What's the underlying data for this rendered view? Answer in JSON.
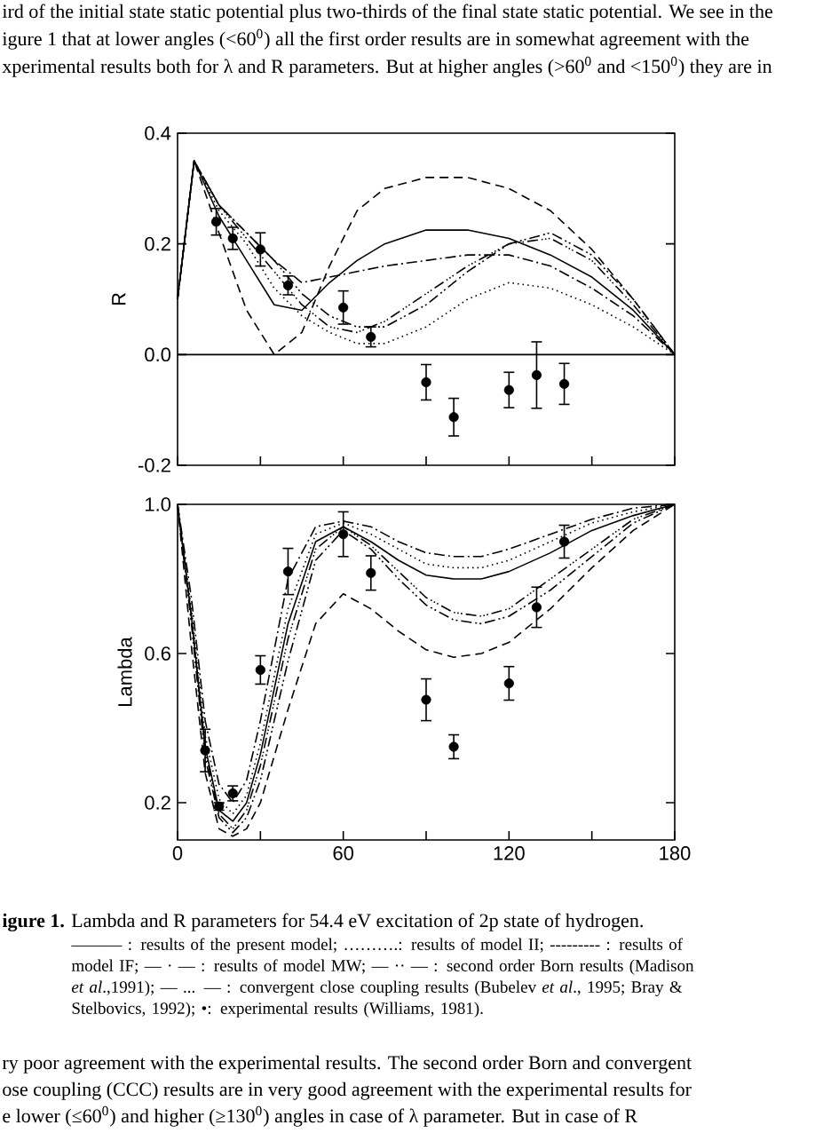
{
  "chart_data": [
    {
      "type": "line",
      "ylabel": "R",
      "xlim": [
        0,
        180
      ],
      "ylim": [
        -0.2,
        0.4
      ],
      "xticks": [
        0,
        {
          "value": 30,
          "label": null
        },
        60,
        {
          "value": 90,
          "label": null
        },
        120,
        {
          "value": 150,
          "label": null
        },
        180
      ],
      "yticks": [
        {
          "value": -0.2,
          "label": "-0.2"
        },
        {
          "value": 0.0,
          "label": "0.0"
        },
        {
          "value": 0.2,
          "label": "0.2"
        },
        {
          "value": 0.4,
          "label": "0.4"
        }
      ],
      "tick_labels": "y",
      "ref_lines": [
        {
          "axis": "y",
          "value": 0,
          "color": "#000000",
          "line_style": "solid"
        }
      ],
      "annotations": [
        "ird of the initial state static potential plus two-thirds of the final state static potential. We see in the",
        "igure 1 that at lower angles (<60$^{0}$) all the first order results are in somewhat agreement with the",
        "xperimental results both for λ and R parameters. But at higher angles (>60$^{0}$ and <150$^{0}$) they are in"
      ],
      "series": [
        {
          "color": "#000000",
          "line_style": "solid",
          "x": [
            0,
            6,
            15,
            25,
            35,
            45,
            55,
            65,
            75,
            90,
            105,
            120,
            135,
            150,
            165,
            180
          ],
          "values": [
            0.1,
            0.35,
            0.25,
            0.17,
            0.09,
            0.08,
            0.13,
            0.17,
            0.2,
            0.225,
            0.225,
            0.21,
            0.18,
            0.14,
            0.08,
            0
          ]
        },
        {
          "color": "#000000",
          "line_style": "dotted",
          "x": [
            0,
            6,
            15,
            25,
            35,
            45,
            55,
            65,
            75,
            90,
            105,
            120,
            135,
            150,
            165,
            180
          ],
          "values": [
            0.1,
            0.35,
            0.26,
            0.2,
            0.12,
            0.07,
            0.04,
            0.02,
            0.02,
            0.05,
            0.1,
            0.13,
            0.12,
            0.09,
            0.05,
            0
          ]
        },
        {
          "color": "#000000",
          "line_style": "dashed",
          "x": [
            0,
            6,
            15,
            25,
            35,
            45,
            55,
            65,
            75,
            90,
            105,
            120,
            135,
            150,
            165,
            180
          ],
          "values": [
            0.1,
            0.35,
            0.22,
            0.08,
            0.0,
            0.04,
            0.16,
            0.26,
            0.3,
            0.32,
            0.32,
            0.3,
            0.26,
            0.19,
            0.1,
            0
          ]
        },
        {
          "color": "#000000",
          "line_style": "dashdot",
          "x": [
            0,
            6,
            15,
            25,
            35,
            45,
            55,
            65,
            75,
            90,
            105,
            120,
            135,
            150,
            165,
            180
          ],
          "values": [
            0.1,
            0.35,
            0.27,
            0.22,
            0.17,
            0.13,
            0.14,
            0.15,
            0.16,
            0.17,
            0.18,
            0.18,
            0.16,
            0.12,
            0.07,
            0
          ]
        },
        {
          "color": "#000000",
          "line_style": "dashdotdot",
          "x": [
            0,
            6,
            15,
            25,
            35,
            45,
            55,
            65,
            75,
            90,
            105,
            120,
            135,
            150,
            165,
            180
          ],
          "values": [
            0.1,
            0.35,
            0.27,
            0.22,
            0.17,
            0.11,
            0.07,
            0.05,
            0.05,
            0.09,
            0.15,
            0.2,
            0.22,
            0.18,
            0.1,
            0
          ]
        },
        {
          "color": "#000000",
          "line_style": "dashdotdotdot",
          "x": [
            0,
            6,
            15,
            25,
            35,
            45,
            55,
            65,
            75,
            90,
            105,
            120,
            135,
            150,
            165,
            180
          ],
          "values": [
            0.1,
            0.35,
            0.27,
            0.21,
            0.15,
            0.09,
            0.05,
            0.04,
            0.06,
            0.11,
            0.16,
            0.2,
            0.21,
            0.17,
            0.09,
            0
          ]
        },
        {
          "type": "scatter",
          "marker": "circle",
          "color": "#000000",
          "x": [
            14,
            20,
            30,
            40,
            60,
            70,
            90,
            100,
            120,
            130,
            140
          ],
          "values": [
            0.24,
            0.21,
            0.19,
            0.125,
            0.085,
            0.032,
            -0.05,
            -0.113,
            -0.064,
            -0.037,
            -0.053
          ],
          "errors": [
            0.024,
            0.02,
            0.03,
            0.017,
            0.03,
            0.018,
            0.032,
            0.034,
            0.032,
            0.06,
            0.037
          ]
        }
      ]
    },
    {
      "type": "line",
      "ylabel": "Lambda",
      "xlim": [
        0,
        180
      ],
      "ylim": [
        0.1,
        1.0
      ],
      "xticks": [
        0,
        {
          "value": 30,
          "label": null
        },
        60,
        {
          "value": 90,
          "label": null
        },
        120,
        {
          "value": 150,
          "label": null
        },
        180
      ],
      "yticks": [
        {
          "value": 0.2,
          "label": "0.2"
        },
        {
          "value": 0.6,
          "label": "0.6"
        },
        {
          "value": 1.0,
          "label": "1.0"
        }
      ],
      "annotations": [
        "**igure 1.** Lambda and R parameters for 54.4 eV excitation of 2p state of hydrogen.",
        "——— : results of the present model; ……….: results of model II; --------- : results of model IF; — · — : results of model MW; — ·· — : second order Born results (Madison *et al*.,1991); — ... — : convergent close coupling results (Bubelev *et al*., 1995; Bray & Stelbovics, 1992);  •: experimental results (Williams, 1981).",
        "ry poor agreement with the experimental results. The second order Born and convergent",
        "ose coupling (CCC) results are in very good agreement with the experimental results for",
        "e lower (≤60$^{0}$) and higher (≥130$^{0}$) angles in case of λ parameter. But in case of R"
      ],
      "series": [
        {
          "color": "#000000",
          "line_style": "solid",
          "x": [
            0,
            5,
            10,
            15,
            20,
            25,
            30,
            40,
            50,
            60,
            70,
            80,
            90,
            100,
            110,
            120,
            135,
            150,
            165,
            180
          ],
          "values": [
            1.0,
            0.7,
            0.35,
            0.18,
            0.15,
            0.2,
            0.33,
            0.68,
            0.9,
            0.94,
            0.9,
            0.85,
            0.81,
            0.8,
            0.8,
            0.82,
            0.87,
            0.93,
            0.97,
            1.0
          ]
        },
        {
          "color": "#000000",
          "line_style": "dotted",
          "x": [
            0,
            5,
            10,
            15,
            20,
            25,
            30,
            40,
            50,
            60,
            70,
            80,
            90,
            100,
            110,
            120,
            135,
            150,
            165,
            180
          ],
          "values": [
            1.0,
            0.72,
            0.38,
            0.21,
            0.17,
            0.22,
            0.36,
            0.72,
            0.92,
            0.95,
            0.92,
            0.88,
            0.84,
            0.83,
            0.83,
            0.85,
            0.9,
            0.95,
            0.98,
            1.0
          ]
        },
        {
          "color": "#000000",
          "line_style": "dashed",
          "x": [
            0,
            5,
            10,
            15,
            20,
            25,
            30,
            40,
            50,
            60,
            70,
            80,
            90,
            100,
            110,
            120,
            135,
            150,
            165,
            180
          ],
          "values": [
            1.0,
            0.62,
            0.28,
            0.13,
            0.11,
            0.13,
            0.2,
            0.45,
            0.68,
            0.76,
            0.72,
            0.66,
            0.61,
            0.59,
            0.6,
            0.63,
            0.72,
            0.83,
            0.93,
            1.0
          ]
        },
        {
          "color": "#000000",
          "line_style": "dashdot",
          "x": [
            0,
            5,
            10,
            15,
            20,
            25,
            30,
            40,
            50,
            60,
            70,
            80,
            90,
            100,
            110,
            120,
            135,
            150,
            165,
            180
          ],
          "values": [
            1.0,
            0.75,
            0.42,
            0.25,
            0.2,
            0.26,
            0.42,
            0.8,
            0.94,
            0.955,
            0.94,
            0.9,
            0.87,
            0.86,
            0.86,
            0.88,
            0.92,
            0.96,
            0.99,
            1.0
          ]
        },
        {
          "color": "#000000",
          "line_style": "dashdotdot",
          "x": [
            0,
            5,
            10,
            15,
            20,
            25,
            30,
            40,
            50,
            60,
            70,
            80,
            90,
            100,
            110,
            120,
            135,
            150,
            165,
            180
          ],
          "values": [
            1.0,
            0.68,
            0.32,
            0.16,
            0.12,
            0.16,
            0.26,
            0.58,
            0.85,
            0.93,
            0.88,
            0.8,
            0.73,
            0.69,
            0.68,
            0.7,
            0.77,
            0.86,
            0.95,
            1.0
          ]
        },
        {
          "color": "#000000",
          "line_style": "dashdotdotdot",
          "x": [
            0,
            5,
            10,
            15,
            20,
            25,
            30,
            40,
            50,
            60,
            70,
            80,
            90,
            100,
            110,
            120,
            135,
            150,
            165,
            180
          ],
          "values": [
            1.0,
            0.7,
            0.34,
            0.17,
            0.13,
            0.18,
            0.3,
            0.64,
            0.88,
            0.94,
            0.89,
            0.82,
            0.75,
            0.71,
            0.7,
            0.72,
            0.8,
            0.88,
            0.96,
            1.0
          ]
        },
        {
          "type": "scatter",
          "marker": "circle",
          "color": "#000000",
          "x": [
            10,
            15,
            20,
            30,
            40,
            60,
            70,
            90,
            100,
            120,
            130,
            140
          ],
          "values": [
            0.34,
            0.19,
            0.225,
            0.556,
            0.82,
            0.92,
            0.816,
            0.476,
            0.35,
            0.52,
            0.724,
            0.9
          ],
          "errors": [
            0.057,
            0.01,
            0.02,
            0.038,
            0.062,
            0.06,
            0.046,
            0.056,
            0.032,
            0.045,
            0.054,
            0.044
          ]
        }
      ]
    }
  ]
}
